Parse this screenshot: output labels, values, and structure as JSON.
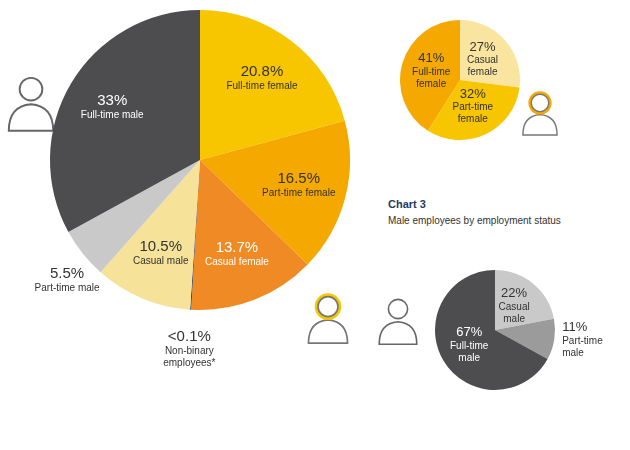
{
  "chart_data": [
    {
      "type": "pie",
      "categories": [
        "Full-time female",
        "Part-time female",
        "Casual female",
        "Non-binary employees*",
        "Casual male",
        "Part-time male",
        "Full-time male"
      ],
      "values": [
        20.8,
        16.5,
        13.7,
        0.1,
        10.5,
        5.5,
        33
      ],
      "value_labels": [
        "20.8%",
        "16.5%",
        "13.7%",
        "<0.1%",
        "10.5%",
        "5.5%",
        "33%"
      ],
      "colors": [
        "#f7c600",
        "#f5a800",
        "#f08a24",
        "#1b2a4a",
        "#f7e29a",
        "#c9c9c9",
        "#4d4d4f"
      ],
      "data_labels": true
    },
    {
      "type": "pie",
      "categories": [
        "Casual female",
        "Part-time female",
        "Full-time female"
      ],
      "values": [
        27,
        32,
        41
      ],
      "value_labels": [
        "27%",
        "32%",
        "41%"
      ],
      "colors": [
        "#f9e5a0",
        "#f7c600",
        "#f5a800"
      ],
      "data_labels": true
    },
    {
      "type": "pie",
      "title": "Chart 3",
      "subtitle": "Male employees by employment status",
      "categories": [
        "Casual male",
        "Part-time male",
        "Full-time male"
      ],
      "values": [
        22,
        11,
        67
      ],
      "value_labels": [
        "22%",
        "11%",
        "67%"
      ],
      "colors": [
        "#c9c9c9",
        "#9b9b9b",
        "#4d4d4f"
      ],
      "data_labels": true
    }
  ]
}
